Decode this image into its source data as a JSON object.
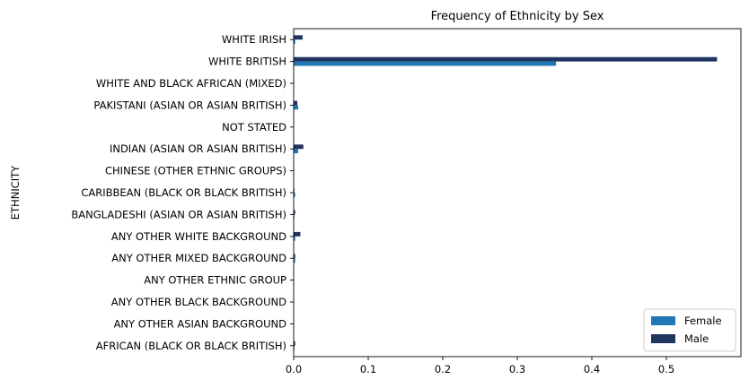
{
  "chart_data": {
    "type": "bar",
    "orientation": "horizontal",
    "title": "Frequency of Ethnicity by Sex",
    "xlabel": "",
    "ylabel": "ETHNICITY",
    "xlim": [
      0,
      0.6
    ],
    "xticks": [
      0.0,
      0.1,
      0.2,
      0.3,
      0.4,
      0.5
    ],
    "xtick_labels": [
      "0.0",
      "0.1",
      "0.2",
      "0.3",
      "0.4",
      "0.5"
    ],
    "categories": [
      "AFRICAN (BLACK OR BLACK BRITISH)",
      "ANY OTHER ASIAN BACKGROUND",
      "ANY OTHER BLACK BACKGROUND",
      "ANY OTHER ETHNIC GROUP",
      "ANY OTHER MIXED BACKGROUND",
      "ANY OTHER WHITE BACKGROUND",
      "BANGLADESHI (ASIAN OR ASIAN BRITISH)",
      "CARIBBEAN (BLACK OR BLACK BRITISH)",
      "CHINESE (OTHER ETHNIC GROUPS)",
      "INDIAN (ASIAN OR ASIAN BRITISH)",
      "NOT STATED",
      "PAKISTANI (ASIAN OR ASIAN BRITISH)",
      "WHITE AND BLACK AFRICAN (MIXED)",
      "WHITE BRITISH",
      "WHITE IRISH"
    ],
    "series": [
      {
        "name": "Female",
        "color": "#1f77b4",
        "values": [
          0.001,
          0.0,
          0.0,
          0.0,
          0.002,
          0.002,
          0.001,
          0.002,
          0.0,
          0.006,
          0.0,
          0.006,
          0.0,
          0.352,
          0.002
        ]
      },
      {
        "name": "Male",
        "color": "#1f3461",
        "values": [
          0.002,
          0.0,
          0.0,
          0.0,
          0.002,
          0.009,
          0.002,
          0.001,
          0.0,
          0.013,
          0.0,
          0.005,
          0.0,
          0.568,
          0.012
        ]
      }
    ],
    "grid": false,
    "legend_position": "lower-right"
  }
}
